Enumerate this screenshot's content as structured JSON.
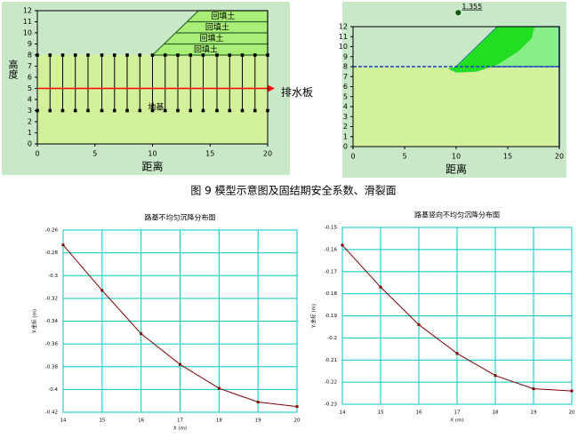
{
  "caption": "图 9 模型示意图及固结期安全系数、滑裂面",
  "chart_data": [
    {
      "type": "model",
      "xlabel": "距离",
      "ylabel": "高度",
      "background": "#c8e8c8",
      "xlim": [
        0,
        20
      ],
      "ylim": [
        0,
        12
      ],
      "xticks": [
        0,
        5,
        10,
        15,
        20
      ],
      "yticks": [
        0,
        1,
        2,
        3,
        4,
        5,
        6,
        7,
        8,
        9,
        10,
        11,
        12
      ],
      "ground": {
        "top": 8,
        "color": "#d3f09b"
      },
      "fill": {
        "x": [
          10,
          14,
          20,
          20
        ],
        "y": [
          8,
          12,
          12,
          8
        ],
        "color": "#a8ee77"
      },
      "layers": [
        9,
        10,
        11
      ],
      "layer_labels": [
        "回填土",
        "回填土",
        "回填土",
        "回填土"
      ],
      "drains": {
        "x": [
          0,
          1.1,
          2.2,
          3.3,
          4.4,
          5.6,
          6.7,
          7.8,
          8.9,
          10,
          11.1,
          12.2,
          13.3,
          14.4,
          15.6,
          16.7,
          17.8,
          18.9,
          20
        ],
        "top": 8,
        "bottom": 3
      },
      "drain_line": {
        "y": 5,
        "label": "排水板",
        "color": "#ff0000"
      },
      "annotations": [
        {
          "text": "地基",
          "x": 10.3,
          "y": 3.3
        }
      ]
    },
    {
      "type": "model",
      "xlabel": "距离",
      "background": "#c8e8c8",
      "xlim": [
        0,
        20
      ],
      "ylim": [
        0,
        12
      ],
      "xticks": [
        0,
        5,
        10,
        15,
        20
      ],
      "yticks": [
        0,
        1,
        2,
        3,
        4,
        5,
        6,
        7,
        8,
        9,
        10,
        11,
        12
      ],
      "ground": {
        "top": 8,
        "color": "#d3f09b"
      },
      "fill": {
        "x": [
          10,
          14,
          20,
          20
        ],
        "y": [
          8,
          12,
          12,
          8
        ],
        "color": "#88ee88"
      },
      "slip": {
        "x": [
          9.2,
          10,
          12,
          14,
          16,
          17.3,
          17.6,
          14,
          10
        ],
        "y": [
          7.8,
          7.4,
          7.5,
          8.2,
          9.5,
          10.8,
          12,
          12,
          8
        ],
        "color": "#22dd22"
      },
      "annotations": [
        {
          "text": "1.355",
          "x": 10.2,
          "y": 13.4
        }
      ]
    },
    {
      "type": "line",
      "title": "路基不均匀沉降分布图",
      "xlabel": "X (m)",
      "ylabel": "Y-坐标 (m)",
      "x": [
        14,
        15,
        16,
        17,
        18,
        19,
        20
      ],
      "xlim": [
        14,
        20
      ],
      "xticks": [
        14,
        15,
        16,
        17,
        18,
        19,
        20
      ],
      "ylim": [
        -0.42,
        -0.26
      ],
      "yticks": [
        -0.26,
        -0.28,
        -0.3,
        -0.32,
        -0.34,
        -0.36,
        -0.38,
        -0.4,
        -0.42
      ],
      "grid": true,
      "series": [
        {
          "color": "#800000",
          "values": [
            -0.273,
            -0.313,
            -0.351,
            -0.378,
            -0.399,
            -0.411,
            -0.415
          ]
        }
      ]
    },
    {
      "type": "line",
      "title": "路基竖向不均匀沉降分布图",
      "xlabel": "X (m)",
      "ylabel": "Y-坐标 (m)",
      "x": [
        14,
        15,
        16,
        17,
        18,
        19,
        20
      ],
      "xlim": [
        14,
        20
      ],
      "xticks": [
        14,
        15,
        16,
        17,
        18,
        19,
        20
      ],
      "ylim": [
        -0.23,
        -0.15
      ],
      "yticks": [
        -0.15,
        -0.16,
        -0.17,
        -0.18,
        -0.19,
        -0.2,
        -0.21,
        -0.22,
        -0.23
      ],
      "grid": true,
      "series": [
        {
          "color": "#800000",
          "values": [
            -0.158,
            -0.177,
            -0.194,
            -0.207,
            -0.217,
            -0.223,
            -0.224
          ]
        }
      ]
    }
  ]
}
